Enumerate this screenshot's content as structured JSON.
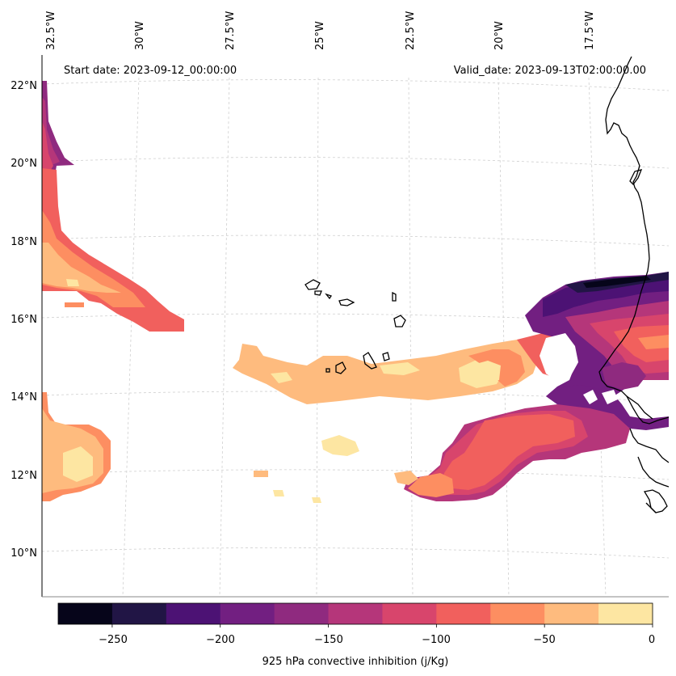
{
  "header": {
    "start_date": "Start date: 2023-09-12_00:00:00",
    "valid_date": "Valid_date: 2023-09-13T02:00:00.00"
  },
  "longitude_labels": [
    "32.5°W",
    "30°W",
    "27.5°W",
    "25°W",
    "22.5°W",
    "20°W",
    "17.5°W"
  ],
  "latitude_labels": [
    "22°N",
    "20°N",
    "18°N",
    "16°N",
    "14°N",
    "12°N",
    "10°N"
  ],
  "colorbar": {
    "title": "925 hPa convective inhibition (j/Kg)",
    "tick_labels": [
      "−250",
      "−200",
      "−150",
      "−100",
      "−50",
      "0"
    ],
    "levels": [
      -275,
      -250,
      -225,
      -200,
      -175,
      -150,
      -125,
      -100,
      -75,
      -50,
      -25,
      0
    ],
    "colors": [
      "#06051a",
      "#211545",
      "#4c1274",
      "#721f81",
      "#8f2a7f",
      "#b5367a",
      "#d8456c",
      "#f1605d",
      "#fd8e61",
      "#febb7e",
      "#fde6a2"
    ]
  },
  "icons": {
    "land": "coastline-outline"
  }
}
